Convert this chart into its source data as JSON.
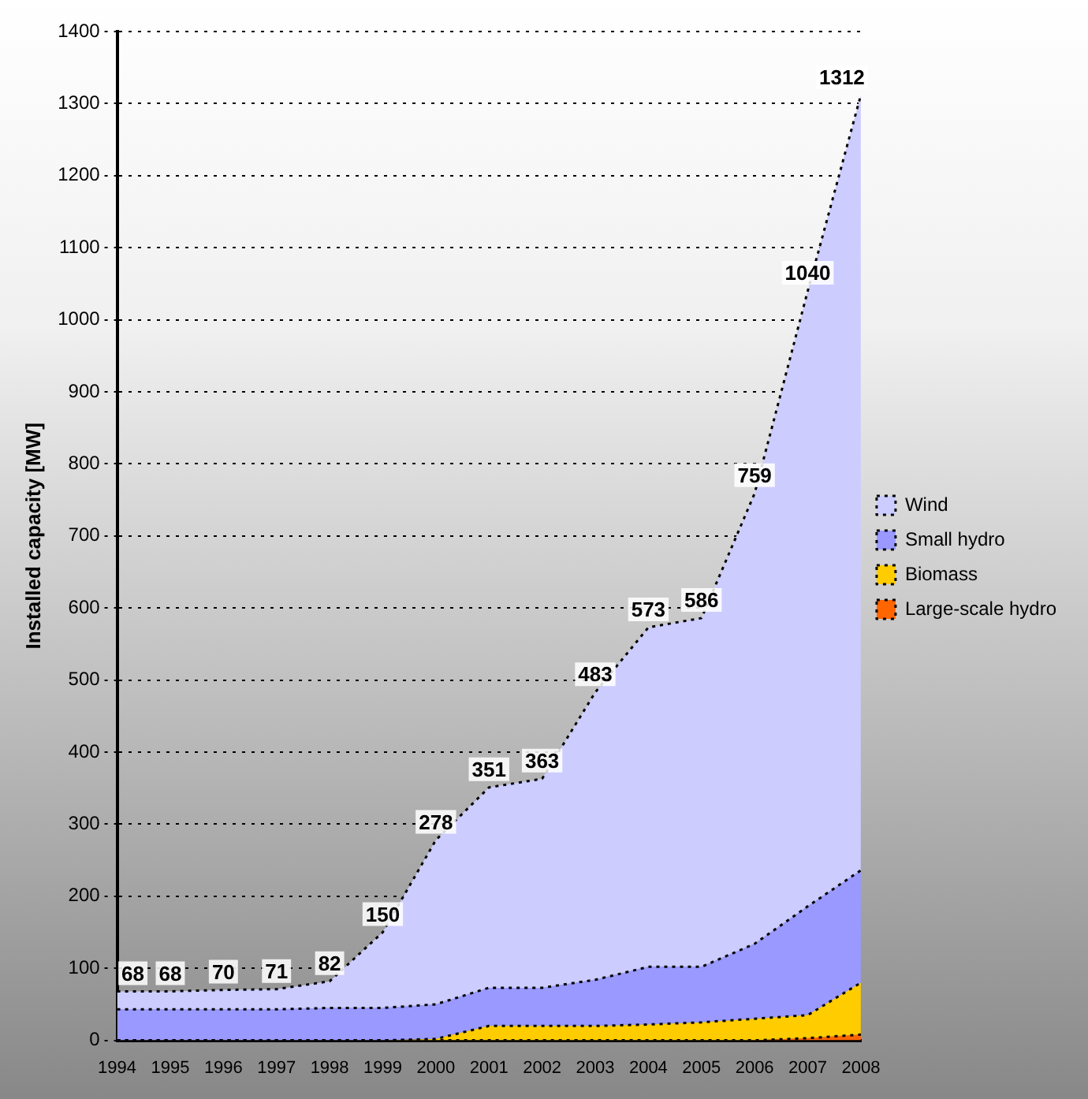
{
  "chart_data": {
    "type": "area",
    "stacked": true,
    "ylabel": "Installed capacity [MW]",
    "categories": [
      "1994",
      "1995",
      "1996",
      "1997",
      "1998",
      "1999",
      "2000",
      "2001",
      "2002",
      "2003",
      "2004",
      "2005",
      "2006",
      "2007",
      "2008"
    ],
    "series": [
      {
        "name": "Large-scale hydro",
        "color": "#ff6600",
        "values": [
          0,
          0,
          0,
          0,
          0,
          0,
          0,
          0,
          0,
          0,
          0,
          0,
          0,
          3,
          8
        ]
      },
      {
        "name": "Biomass",
        "color": "#ffcc00",
        "values": [
          0,
          0,
          0,
          0,
          0,
          0,
          2,
          20,
          20,
          20,
          22,
          25,
          30,
          32,
          72
        ]
      },
      {
        "name": "Small hydro",
        "color": "#9999ff",
        "values": [
          43,
          43,
          43,
          43,
          45,
          45,
          48,
          53,
          53,
          64,
          80,
          77,
          104,
          151,
          156
        ]
      },
      {
        "name": "Wind",
        "color": "#ccccff",
        "values": [
          25,
          25,
          27,
          28,
          37,
          105,
          228,
          278,
          290,
          399,
          471,
          484,
          625,
          854,
          1076
        ]
      }
    ],
    "totals": [
      "68",
      "68",
      "70",
      "71",
      "82",
      "150",
      "278",
      "351",
      "363",
      "483",
      "573",
      "586",
      "759",
      "1040",
      "1312"
    ],
    "ylim": [
      0,
      1400
    ],
    "yticks": [
      0,
      100,
      200,
      300,
      400,
      500,
      600,
      700,
      800,
      900,
      1000,
      1100,
      1200,
      1300,
      1400
    ],
    "grid": "y",
    "line_style": "dotted",
    "legend": "right"
  }
}
